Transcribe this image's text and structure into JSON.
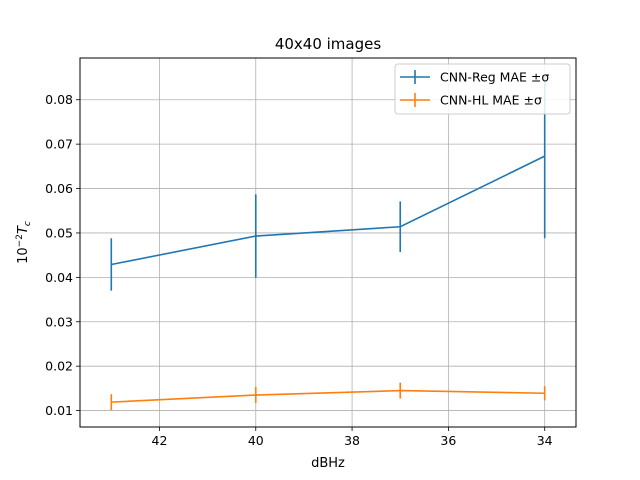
{
  "chart_data": {
    "type": "line",
    "title": "40x40 images",
    "xlabel": "dBHz",
    "ylabel": "10⁻²T_c",
    "x": [
      43,
      40,
      37,
      34
    ],
    "xlim": [
      43.65,
      33.35
    ],
    "ylim": [
      0.0063,
      0.0894
    ],
    "xticks": [
      42,
      40,
      38,
      36,
      34
    ],
    "yticks": [
      0.01,
      0.02,
      0.03,
      0.04,
      0.05,
      0.06,
      0.07,
      0.08
    ],
    "xtick_labels": [
      "42",
      "40",
      "38",
      "36",
      "34"
    ],
    "ytick_labels": [
      "0.01",
      "0.02",
      "0.03",
      "0.04",
      "0.05",
      "0.06",
      "0.07",
      "0.08"
    ],
    "grid": true,
    "legend_position": "top-right",
    "series": [
      {
        "name": "CNN-Reg MAE ±σ",
        "color": "#1f77b4",
        "values": [
          0.0429,
          0.0493,
          0.0514,
          0.0673
        ],
        "errors": [
          0.0059,
          0.0094,
          0.0057,
          0.0185
        ]
      },
      {
        "name": "CNN-HL MAE ±σ",
        "color": "#ff7f0e",
        "values": [
          0.0119,
          0.0135,
          0.0145,
          0.0139
        ],
        "errors": [
          0.0018,
          0.0018,
          0.0018,
          0.0016
        ]
      }
    ]
  }
}
